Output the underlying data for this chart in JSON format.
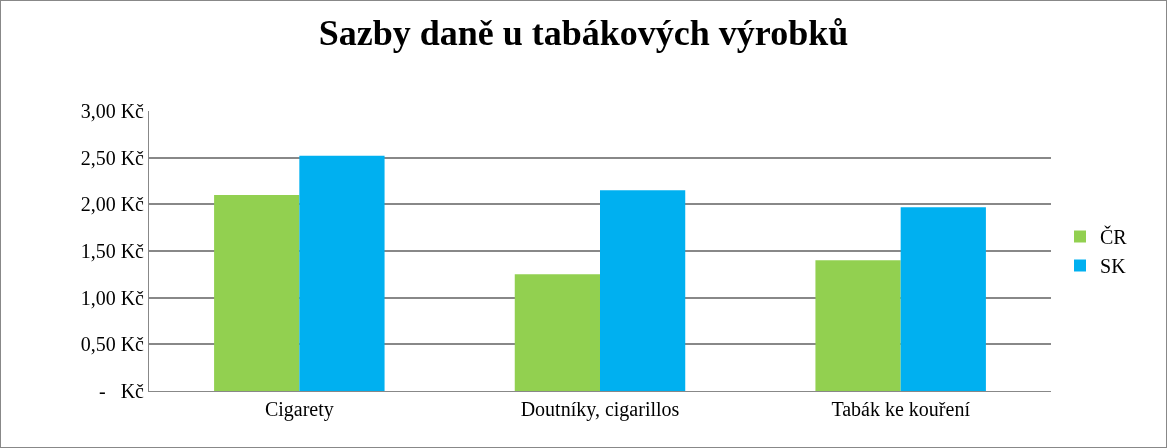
{
  "chart_data": {
    "type": "bar",
    "title": "Sazby daně u tabákových výrobků",
    "categories": [
      "Cigarety",
      "Doutníky, cigarillos",
      "Tabák ke kouření"
    ],
    "series": [
      {
        "name": "ČR",
        "color": "#92d050",
        "values": [
          2.1,
          1.25,
          1.4
        ]
      },
      {
        "name": "SK",
        "color": "#00b0f0",
        "values": [
          2.52,
          2.15,
          1.97
        ]
      }
    ],
    "ylim": [
      0,
      3
    ],
    "yticks": [
      {
        "value": 0,
        "label": "-   Kč"
      },
      {
        "value": 0.5,
        "label": "0,50 Kč"
      },
      {
        "value": 1,
        "label": "1,00 Kč"
      },
      {
        "value": 1.5,
        "label": "1,50 Kč"
      },
      {
        "value": 2,
        "label": "2,00 Kč"
      },
      {
        "value": 2.5,
        "label": "2,50 Kč"
      },
      {
        "value": 3,
        "label": "3,00 Kč"
      }
    ],
    "grid": "y",
    "legend": "right"
  }
}
